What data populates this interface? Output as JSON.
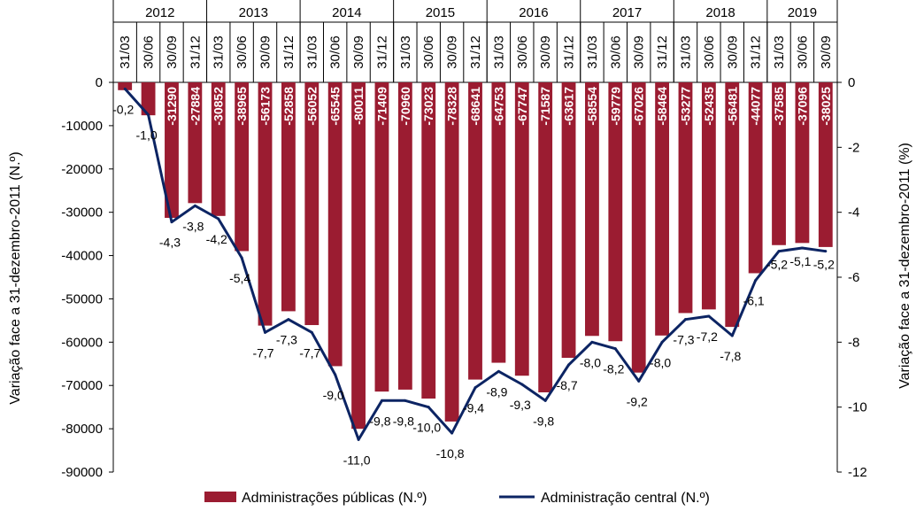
{
  "chart_data": {
    "type": "bar",
    "years": [
      {
        "label": "2012",
        "span": 4
      },
      {
        "label": "2013",
        "span": 4
      },
      {
        "label": "2014",
        "span": 4
      },
      {
        "label": "2015",
        "span": 4
      },
      {
        "label": "2016",
        "span": 4
      },
      {
        "label": "2017",
        "span": 4
      },
      {
        "label": "2018",
        "span": 4
      },
      {
        "label": "2019",
        "span": 3
      }
    ],
    "categories": [
      "31/03",
      "30/06",
      "30/09",
      "31/12",
      "31/03",
      "30/06",
      "30/09",
      "31/12",
      "31/03",
      "30/06",
      "30/09",
      "31/12",
      "31/03",
      "30/06",
      "30/09",
      "31/12",
      "31/03",
      "30/06",
      "30/09",
      "31/12",
      "31/03",
      "30/06",
      "30/09",
      "31/12",
      "31/03",
      "30/06",
      "30/09",
      "31/12",
      "31/03",
      "30/06",
      "30/09"
    ],
    "series": [
      {
        "name": "Administrações públicas (N.º)",
        "axis": "left",
        "color": "#9b1c31",
        "values": [
          -1800,
          -7600,
          -31290,
          -27884,
          -30852,
          -38965,
          -56173,
          -52858,
          -56052,
          -65545,
          -80011,
          -71409,
          -70960,
          -73023,
          -78328,
          -68641,
          -64753,
          -67747,
          -71587,
          -63617,
          -58554,
          -59779,
          -67026,
          -58464,
          -53277,
          -52435,
          -56481,
          -44077,
          -37585,
          -37096,
          -38025
        ],
        "labels": [
          "",
          "",
          "-31290",
          "-27884",
          "-30852",
          "-38965",
          "-56173",
          "-52858",
          "-56052",
          "-65545",
          "-80011",
          "-71409",
          "-70960",
          "-73023",
          "-78328",
          "-68641",
          "-64753",
          "-67747",
          "-71587",
          "-63617",
          "-58554",
          "-59779",
          "-67026",
          "-58464",
          "-53277",
          "-52435",
          "-56481",
          "-44077",
          "-37585",
          "-37096",
          "-38025"
        ]
      },
      {
        "name": "Administração central (N.º)",
        "axis": "right",
        "color": "#0c2463",
        "values": [
          -0.2,
          -1.0,
          -4.3,
          -3.8,
          -4.2,
          -5.4,
          -7.7,
          -7.3,
          -7.7,
          -9.0,
          -11.0,
          -9.8,
          -9.8,
          -10.0,
          -10.8,
          -9.4,
          -8.9,
          -9.3,
          -9.8,
          -8.7,
          -8.0,
          -8.2,
          -9.2,
          -8.0,
          -7.3,
          -7.2,
          -7.8,
          -6.1,
          -5.2,
          -5.1,
          -5.2
        ],
        "labels": [
          "-0,2",
          "-1,0",
          "-4,3",
          "-3,8",
          "-4,2",
          "-5,4",
          "-7,7",
          "-7,3",
          "-7,7",
          "-9,0",
          "-11,0",
          "-9,8",
          "-9,8",
          "-10,0",
          "-10,8",
          "-9,4",
          "-8,9",
          "-9,3",
          "-9,8",
          "-8,7",
          "-8,0",
          "-8,2",
          "-9,2",
          "-8,0",
          "-7,3",
          "-7,2",
          "-7,8",
          "-6,1",
          "-5,2",
          "-5,1",
          "-5,2"
        ]
      }
    ],
    "ylabel": "Variação  face a 31-dezembro-2011 (N.º)",
    "y2label": "Variação face a 31-dezembro-2011 (%)",
    "ylim": [
      -90000,
      0
    ],
    "yticks": [
      0,
      -10000,
      -20000,
      -30000,
      -40000,
      -50000,
      -60000,
      -70000,
      -80000,
      -90000
    ],
    "y2lim": [
      -12,
      0
    ],
    "y2ticks": [
      0,
      -2,
      -4,
      -6,
      -8,
      -10,
      -12
    ],
    "grid": false,
    "legend_position": "bottom"
  }
}
